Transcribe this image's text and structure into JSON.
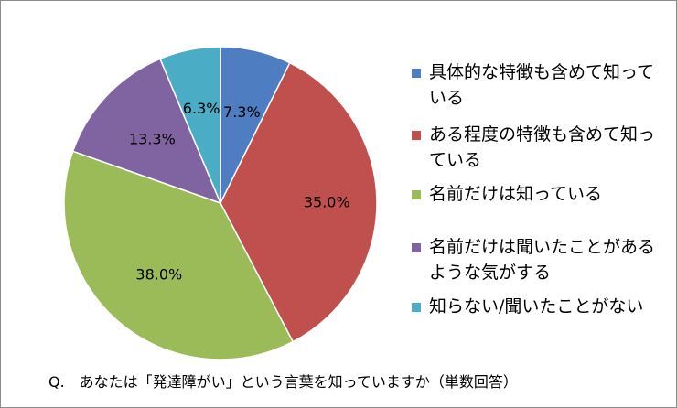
{
  "chart_data": {
    "type": "pie",
    "categories": [
      "具体的な特徴も含めて知っている",
      "ある程度の特徴も含めて知っている",
      "名前だけは知っている",
      "名前だけは聞いたことがあるような気がする",
      "知らない/聞いたことがない"
    ],
    "values": [
      7.3,
      35.0,
      38.0,
      13.3,
      6.3
    ],
    "value_labels": [
      "7.3%",
      "35.0%",
      "38.0%",
      "13.3%",
      "6.3%"
    ],
    "colors": [
      "#4f7dc1",
      "#c0504d",
      "#9bbb59",
      "#8064a2",
      "#4bacc6"
    ],
    "legend_position": "right",
    "start": "12 o'clock, clockwise"
  },
  "legend": {
    "items": [
      "具体的な特徴も含めて知っている",
      "ある程度の特徴も含めて知っている",
      "名前だけは知っている",
      "名前だけは聞いたことがあるような気がする",
      "知らない/聞いたことがない"
    ]
  },
  "caption": "Q.　あなたは「発達障がい」という言葉を知っていますか（単数回答）"
}
